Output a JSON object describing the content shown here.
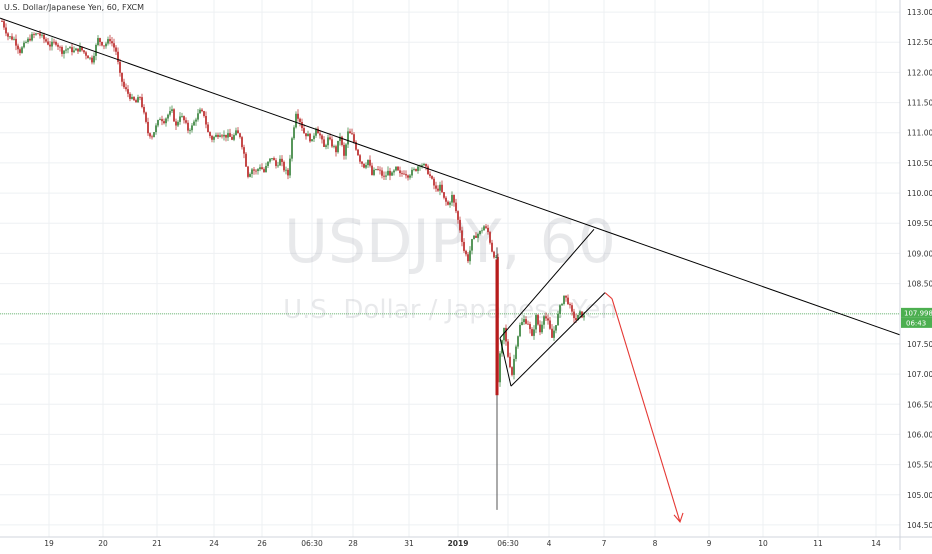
{
  "chart_data": {
    "type": "candlestick",
    "title": "U.S. Dollar/Japanese Yen, 60, FXCM",
    "watermark": {
      "symbol": "USDJPY, 60",
      "description": "U.S. Dollar / Japanese Yen"
    },
    "ylim": [
      104.3,
      113.2
    ],
    "y_ticks": [
      "113.000",
      "112.500",
      "112.000",
      "111.500",
      "111.000",
      "110.500",
      "110.000",
      "109.500",
      "109.000",
      "108.500",
      "108.000",
      "107.500",
      "107.000",
      "106.500",
      "106.000",
      "105.500",
      "105.000",
      "104.500"
    ],
    "x_ticks": [
      {
        "label": "19",
        "t": 49
      },
      {
        "label": "20",
        "t": 103
      },
      {
        "label": "21",
        "t": 157
      },
      {
        "label": "24",
        "t": 214
      },
      {
        "label": "26",
        "t": 262
      },
      {
        "label": "06:30",
        "t": 312
      },
      {
        "label": "28",
        "t": 353
      },
      {
        "label": "31",
        "t": 409
      },
      {
        "label": "2019",
        "t": 458,
        "bold": true
      },
      {
        "label": "06:30",
        "t": 508
      },
      {
        "label": "4",
        "t": 549
      },
      {
        "label": "7",
        "t": 604
      },
      {
        "label": "8",
        "t": 655
      },
      {
        "label": "9",
        "t": 709
      },
      {
        "label": "10",
        "t": 763
      },
      {
        "label": "11",
        "t": 818
      },
      {
        "label": "14",
        "t": 876
      }
    ],
    "path": [
      [
        2,
        112.85
      ],
      [
        8,
        112.6
      ],
      [
        14,
        112.55
      ],
      [
        20,
        112.35
      ],
      [
        26,
        112.5
      ],
      [
        32,
        112.6
      ],
      [
        38,
        112.65
      ],
      [
        44,
        112.55
      ],
      [
        50,
        112.45
      ],
      [
        56,
        112.5
      ],
      [
        62,
        112.35
      ],
      [
        68,
        112.4
      ],
      [
        74,
        112.35
      ],
      [
        80,
        112.4
      ],
      [
        86,
        112.3
      ],
      [
        92,
        112.2
      ],
      [
        98,
        112.55
      ],
      [
        104,
        112.45
      ],
      [
        110,
        112.55
      ],
      [
        116,
        112.35
      ],
      [
        120,
        111.95
      ],
      [
        124,
        111.75
      ],
      [
        128,
        111.65
      ],
      [
        132,
        111.55
      ],
      [
        136,
        111.5
      ],
      [
        140,
        111.6
      ],
      [
        144,
        111.3
      ],
      [
        148,
        111.0
      ],
      [
        152,
        110.95
      ],
      [
        156,
        111.1
      ],
      [
        160,
        111.25
      ],
      [
        164,
        111.2
      ],
      [
        168,
        111.3
      ],
      [
        172,
        111.35
      ],
      [
        176,
        111.1
      ],
      [
        180,
        111.3
      ],
      [
        184,
        111.2
      ],
      [
        188,
        111.05
      ],
      [
        192,
        111.1
      ],
      [
        196,
        111.25
      ],
      [
        200,
        111.35
      ],
      [
        204,
        111.3
      ],
      [
        208,
        111.0
      ],
      [
        212,
        110.9
      ],
      [
        216,
        110.95
      ],
      [
        220,
        111.0
      ],
      [
        224,
        110.95
      ],
      [
        228,
        110.95
      ],
      [
        232,
        110.9
      ],
      [
        236,
        111.0
      ],
      [
        240,
        110.95
      ],
      [
        244,
        110.65
      ],
      [
        248,
        110.3
      ],
      [
        252,
        110.4
      ],
      [
        256,
        110.35
      ],
      [
        260,
        110.45
      ],
      [
        264,
        110.35
      ],
      [
        268,
        110.5
      ],
      [
        272,
        110.6
      ],
      [
        276,
        110.45
      ],
      [
        280,
        110.55
      ],
      [
        284,
        110.4
      ],
      [
        288,
        110.3
      ],
      [
        292,
        110.9
      ],
      [
        296,
        111.35
      ],
      [
        300,
        111.2
      ],
      [
        304,
        111.0
      ],
      [
        308,
        110.95
      ],
      [
        312,
        110.85
      ],
      [
        316,
        111.1
      ],
      [
        320,
        110.95
      ],
      [
        324,
        110.75
      ],
      [
        328,
        110.9
      ],
      [
        332,
        110.8
      ],
      [
        336,
        110.7
      ],
      [
        340,
        110.95
      ],
      [
        344,
        110.6
      ],
      [
        348,
        111.0
      ],
      [
        352,
        110.95
      ],
      [
        356,
        110.75
      ],
      [
        360,
        110.55
      ],
      [
        364,
        110.45
      ],
      [
        368,
        110.55
      ],
      [
        372,
        110.3
      ],
      [
        376,
        110.4
      ],
      [
        380,
        110.35
      ],
      [
        384,
        110.25
      ],
      [
        388,
        110.35
      ],
      [
        392,
        110.3
      ],
      [
        396,
        110.4
      ],
      [
        400,
        110.3
      ],
      [
        404,
        110.35
      ],
      [
        408,
        110.3
      ],
      [
        412,
        110.35
      ],
      [
        416,
        110.4
      ],
      [
        420,
        110.5
      ],
      [
        424,
        110.45
      ],
      [
        428,
        110.35
      ],
      [
        432,
        110.2
      ],
      [
        436,
        110.05
      ],
      [
        440,
        110.1
      ],
      [
        444,
        109.9
      ],
      [
        448,
        109.8
      ],
      [
        452,
        109.95
      ],
      [
        456,
        109.7
      ],
      [
        460,
        109.4
      ],
      [
        464,
        109.05
      ],
      [
        468,
        108.9
      ],
      [
        472,
        109.2
      ],
      [
        476,
        109.3
      ],
      [
        480,
        109.35
      ],
      [
        484,
        109.45
      ],
      [
        488,
        109.35
      ],
      [
        492,
        109.05
      ],
      [
        496,
        108.9
      ],
      [
        497,
        106.65
      ],
      [
        500,
        107.3
      ],
      [
        504,
        107.75
      ],
      [
        508,
        107.3
      ],
      [
        512,
        107.0
      ],
      [
        516,
        107.5
      ],
      [
        520,
        107.8
      ],
      [
        524,
        107.9
      ],
      [
        528,
        107.85
      ],
      [
        532,
        107.6
      ],
      [
        536,
        107.95
      ],
      [
        540,
        107.7
      ],
      [
        544,
        108.0
      ],
      [
        548,
        107.85
      ],
      [
        552,
        107.6
      ],
      [
        556,
        107.85
      ],
      [
        560,
        108.1
      ],
      [
        564,
        108.3
      ],
      [
        568,
        108.2
      ],
      [
        572,
        108.0
      ],
      [
        576,
        107.9
      ],
      [
        580,
        108.0
      ],
      [
        584,
        107.95
      ]
    ],
    "candle_noise": 0.055,
    "last_price": {
      "value": 107.998,
      "label": "107.998",
      "countdown": "06:43"
    },
    "drawings": {
      "trendline": {
        "from": {
          "t": 0,
          "y": 112.9
        },
        "to": {
          "t": 900,
          "y": 107.65
        },
        "color": "#000000"
      },
      "channel": [
        {
          "from": {
            "t": 500,
            "y": 107.6
          },
          "to": {
            "t": 594,
            "y": 109.4
          },
          "color": "#000000"
        },
        {
          "from": {
            "t": 511,
            "y": 106.8
          },
          "to": {
            "t": 605,
            "y": 108.35
          },
          "color": "#000000"
        },
        {
          "from": {
            "t": 500,
            "y": 107.6
          },
          "to": {
            "t": 511,
            "y": 106.8
          },
          "color": "#000000"
        }
      ],
      "projection": [
        {
          "from": {
            "t": 605,
            "y": 108.35
          },
          "to": {
            "t": 612,
            "y": 108.25
          },
          "color": "#e53935"
        },
        {
          "from": {
            "t": 612,
            "y": 108.25
          },
          "to": {
            "t": 680,
            "y": 104.55
          },
          "color": "#e53935"
        }
      ],
      "spike_wick": {
        "t": 497,
        "high": 109.1,
        "low": 104.75
      },
      "price_line_color": "#4caf50"
    },
    "colors": {
      "up": "#26a69a",
      "up_body": "#2e7d32",
      "down": "#b71c1c",
      "grid": "#eef0f3",
      "axis_text": "#333333"
    }
  }
}
